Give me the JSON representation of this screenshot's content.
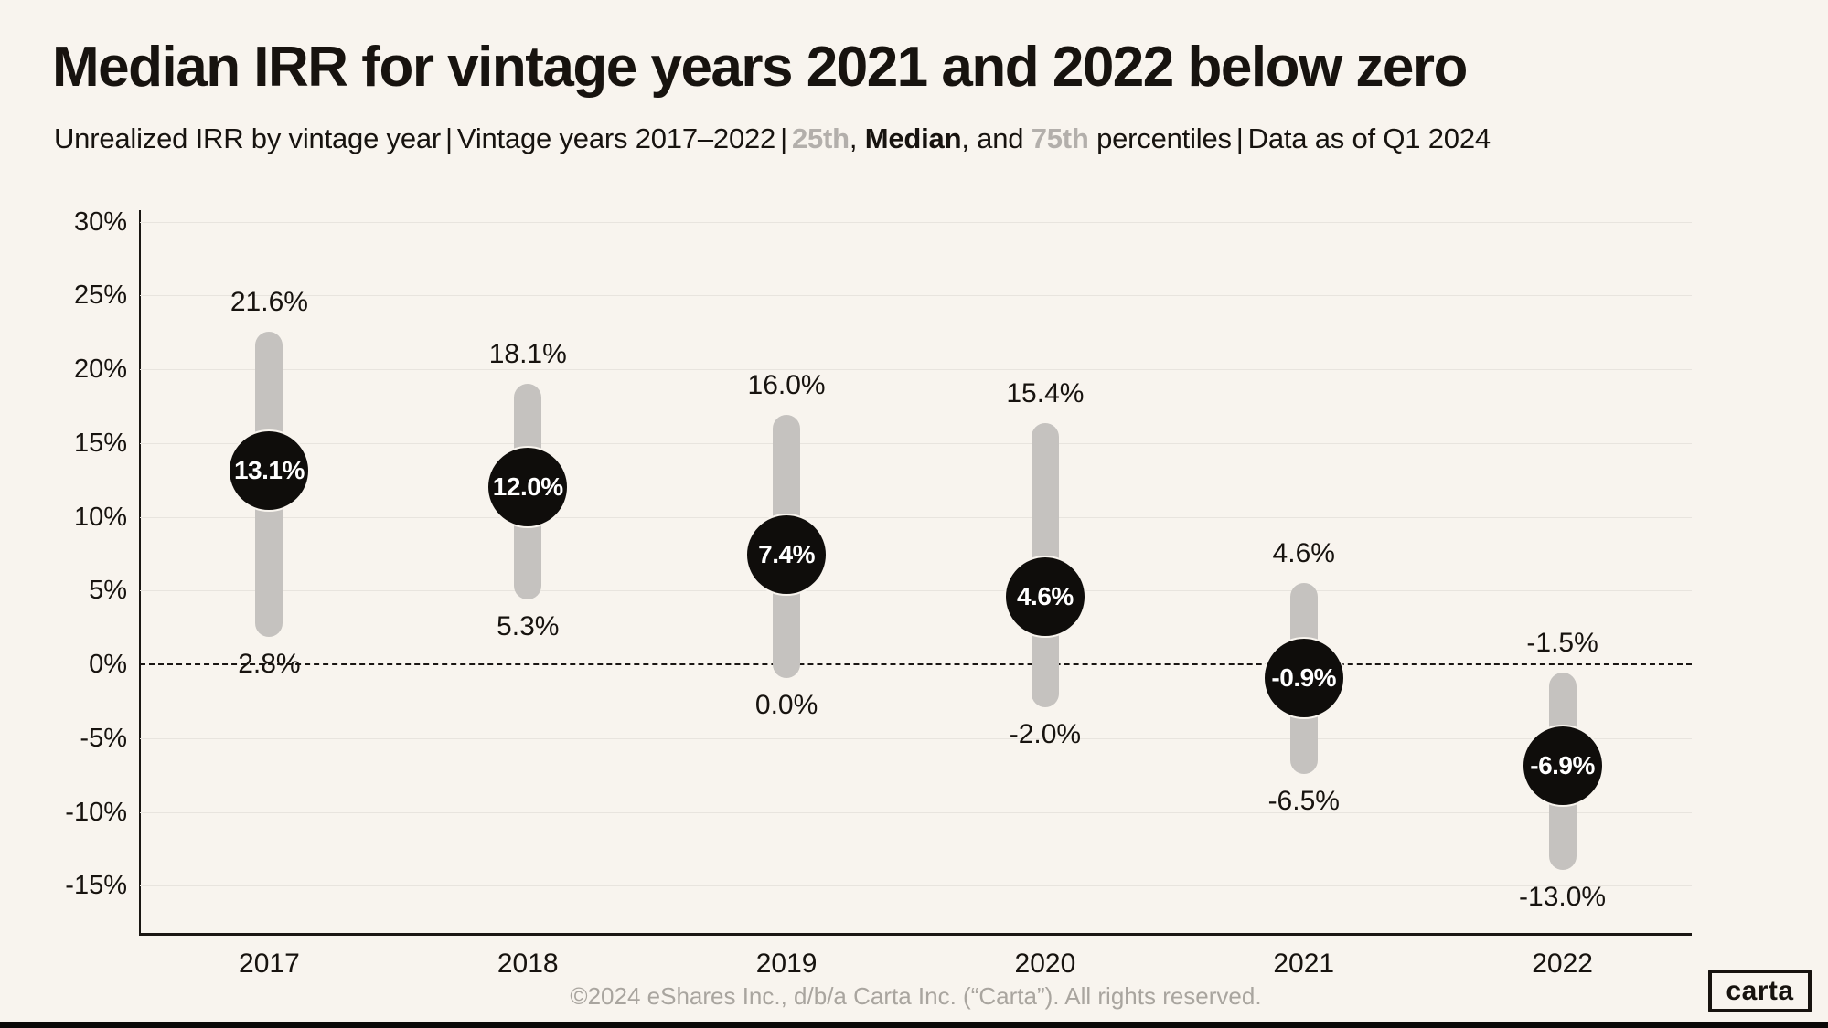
{
  "header": {
    "title": "Median IRR for vintage years 2021 and 2022 below zero",
    "subtitle_runs": [
      {
        "text": "Unrealized IRR by vintage year",
        "style": "normal"
      },
      {
        "text": "|",
        "style": "sep"
      },
      {
        "text": "Vintage years 2017–2022",
        "style": "normal"
      },
      {
        "text": "|",
        "style": "sep"
      },
      {
        "text": "25th",
        "style": "gray-bold"
      },
      {
        "text": ", ",
        "style": "normal"
      },
      {
        "text": "Median",
        "style": "bold"
      },
      {
        "text": ", and ",
        "style": "normal"
      },
      {
        "text": "75th",
        "style": "gray-bold"
      },
      {
        "text": " percentiles",
        "style": "normal"
      },
      {
        "text": "|",
        "style": "sep"
      },
      {
        "text": "Data as of Q1 2024",
        "style": "normal"
      }
    ]
  },
  "footer": {
    "copyright": "©2024 eShares Inc., d/b/a Carta Inc. (“Carta”). All rights reserved.",
    "logo_label": "carta"
  },
  "colors": {
    "background": "#f8f4ee",
    "text": "#17130f",
    "bar": "#c5c2bf",
    "median_dot": "#0f0d0b",
    "gridline": "#e8e4de",
    "axis": "#1a1613",
    "gray_accent": "#b3afab",
    "footer_gray": "#a9a59f"
  },
  "chart_data": {
    "type": "range-bar",
    "title": "Median IRR for vintage years 2021 and 2022 below zero",
    "subtitle": "Unrealized IRR by vintage year | Vintage years 2017–2022 | 25th, Median, and 75th percentiles | Data as of Q1 2024",
    "categories": [
      "2017",
      "2018",
      "2019",
      "2020",
      "2021",
      "2022"
    ],
    "series": [
      {
        "name": "75th percentile",
        "values": [
          21.6,
          18.1,
          16.0,
          15.4,
          4.6,
          -1.5
        ]
      },
      {
        "name": "Median",
        "values": [
          13.1,
          12.0,
          7.4,
          4.6,
          -0.9,
          -6.9
        ]
      },
      {
        "name": "25th percentile",
        "values": [
          2.8,
          5.3,
          0.0,
          -2.0,
          -6.5,
          -13.0
        ]
      }
    ],
    "value_labels": {
      "p75": [
        "21.6%",
        "18.1%",
        "16.0%",
        "15.4%",
        "4.6%",
        "-1.5%"
      ],
      "median": [
        "13.1%",
        "12.0%",
        "7.4%",
        "4.6%",
        "-0.9%",
        "-6.9%"
      ],
      "p25": [
        "2.8%",
        "5.3%",
        "0.0%",
        "-2.0%",
        "-6.5%",
        "-13.0%"
      ]
    },
    "xlabel": "",
    "ylabel": "",
    "ylim": [
      -18.4,
      30.7
    ],
    "yticks": [
      30,
      25,
      20,
      15,
      10,
      5,
      0,
      -5,
      -10,
      -15
    ],
    "ytick_labels": [
      "30%",
      "25%",
      "20%",
      "15%",
      "10%",
      "5%",
      "0%",
      "-5%",
      "-10%",
      "-15%"
    ],
    "grid": "horizontal",
    "zero_line": "dashed",
    "legend_position": "in-subtitle"
  }
}
